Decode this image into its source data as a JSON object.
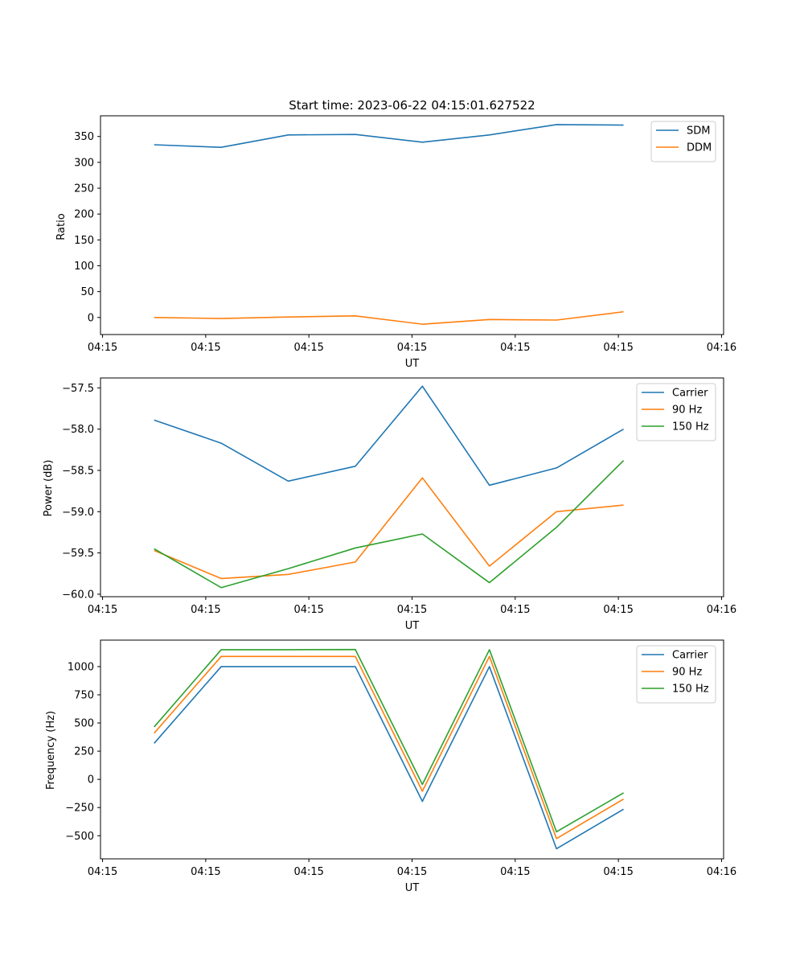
{
  "chart_data": [
    {
      "type": "line",
      "title": "Start time: 2023-06-22 04:15:01.627522",
      "xlabel": "UT",
      "ylabel": "Ratio",
      "x_tick_labels": [
        "04:15",
        "04:15",
        "04:15",
        "04:15",
        "04:15",
        "04:15",
        "04:16"
      ],
      "x_tick_values": [
        0,
        1,
        2,
        3,
        4,
        5,
        6
      ],
      "xlim": [
        -0.02,
        6.02
      ],
      "y_ticks": [
        0,
        50,
        100,
        150,
        200,
        250,
        300,
        350
      ],
      "ylim": [
        -33,
        390
      ],
      "x": [
        0.5,
        1.15,
        1.8,
        2.45,
        3.1,
        3.75,
        4.4,
        5.05
      ],
      "series": [
        {
          "name": "SDM",
          "color": "#1f77b4",
          "values": [
            334,
            329,
            353,
            354,
            339,
            353,
            373,
            372
          ]
        },
        {
          "name": "DDM",
          "color": "#ff7f0e",
          "values": [
            0,
            -2,
            1,
            3,
            -13,
            -4,
            -5,
            11
          ]
        }
      ],
      "legend": "top-right",
      "grid": false
    },
    {
      "type": "line",
      "title": "",
      "xlabel": "UT",
      "ylabel": "Power (dB)",
      "x_tick_labels": [
        "04:15",
        "04:15",
        "04:15",
        "04:15",
        "04:15",
        "04:15",
        "04:16"
      ],
      "x_tick_values": [
        0,
        1,
        2,
        3,
        4,
        5,
        6
      ],
      "xlim": [
        -0.02,
        6.02
      ],
      "y_ticks": [
        -60.0,
        -59.5,
        -59.0,
        -58.5,
        -58.0,
        -57.5
      ],
      "y_tick_labels": [
        "−60.0",
        "−59.5",
        "−59.0",
        "−58.5",
        "−58.0",
        "−57.5"
      ],
      "ylim": [
        -60.03,
        -57.38
      ],
      "x": [
        0.5,
        1.15,
        1.8,
        2.45,
        3.1,
        3.75,
        4.4,
        5.05
      ],
      "series": [
        {
          "name": "Carrier",
          "color": "#1f77b4",
          "values": [
            -57.89,
            -58.17,
            -58.63,
            -58.45,
            -57.48,
            -58.68,
            -58.47,
            -58.0
          ]
        },
        {
          "name": "90 Hz",
          "color": "#ff7f0e",
          "values": [
            -59.47,
            -59.81,
            -59.76,
            -59.61,
            -58.59,
            -59.66,
            -59.0,
            -58.92
          ]
        },
        {
          "name": "150 Hz",
          "color": "#2ca02c",
          "values": [
            -59.45,
            -59.92,
            -59.69,
            -59.44,
            -59.27,
            -59.86,
            -59.19,
            -58.38
          ]
        }
      ],
      "legend": "top-right",
      "grid": false
    },
    {
      "type": "line",
      "title": "",
      "xlabel": "UT",
      "ylabel": "Frequency (Hz)",
      "x_tick_labels": [
        "04:15",
        "04:15",
        "04:15",
        "04:15",
        "04:15",
        "04:15",
        "04:16"
      ],
      "x_tick_values": [
        0,
        1,
        2,
        3,
        4,
        5,
        6
      ],
      "xlim": [
        -0.02,
        6.02
      ],
      "y_ticks": [
        -500,
        -250,
        0,
        250,
        500,
        750,
        1000
      ],
      "y_tick_labels": [
        "−500",
        "−250",
        "0",
        "250",
        "500",
        "750",
        "1000"
      ],
      "ylim": [
        -705,
        1235
      ],
      "x": [
        0.5,
        1.15,
        1.8,
        2.45,
        3.1,
        3.75,
        4.4,
        5.05
      ],
      "series": [
        {
          "name": "Carrier",
          "color": "#1f77b4",
          "values": [
            320,
            1000,
            1000,
            1000,
            -195,
            1000,
            -615,
            -265
          ]
        },
        {
          "name": "90 Hz",
          "color": "#ff7f0e",
          "values": [
            410,
            1090,
            1090,
            1090,
            -105,
            1090,
            -525,
            -175
          ]
        },
        {
          "name": "150 Hz",
          "color": "#2ca02c",
          "values": [
            465,
            1150,
            1150,
            1152,
            -45,
            1150,
            -465,
            -120
          ]
        }
      ],
      "legend": "top-right",
      "grid": false
    }
  ]
}
